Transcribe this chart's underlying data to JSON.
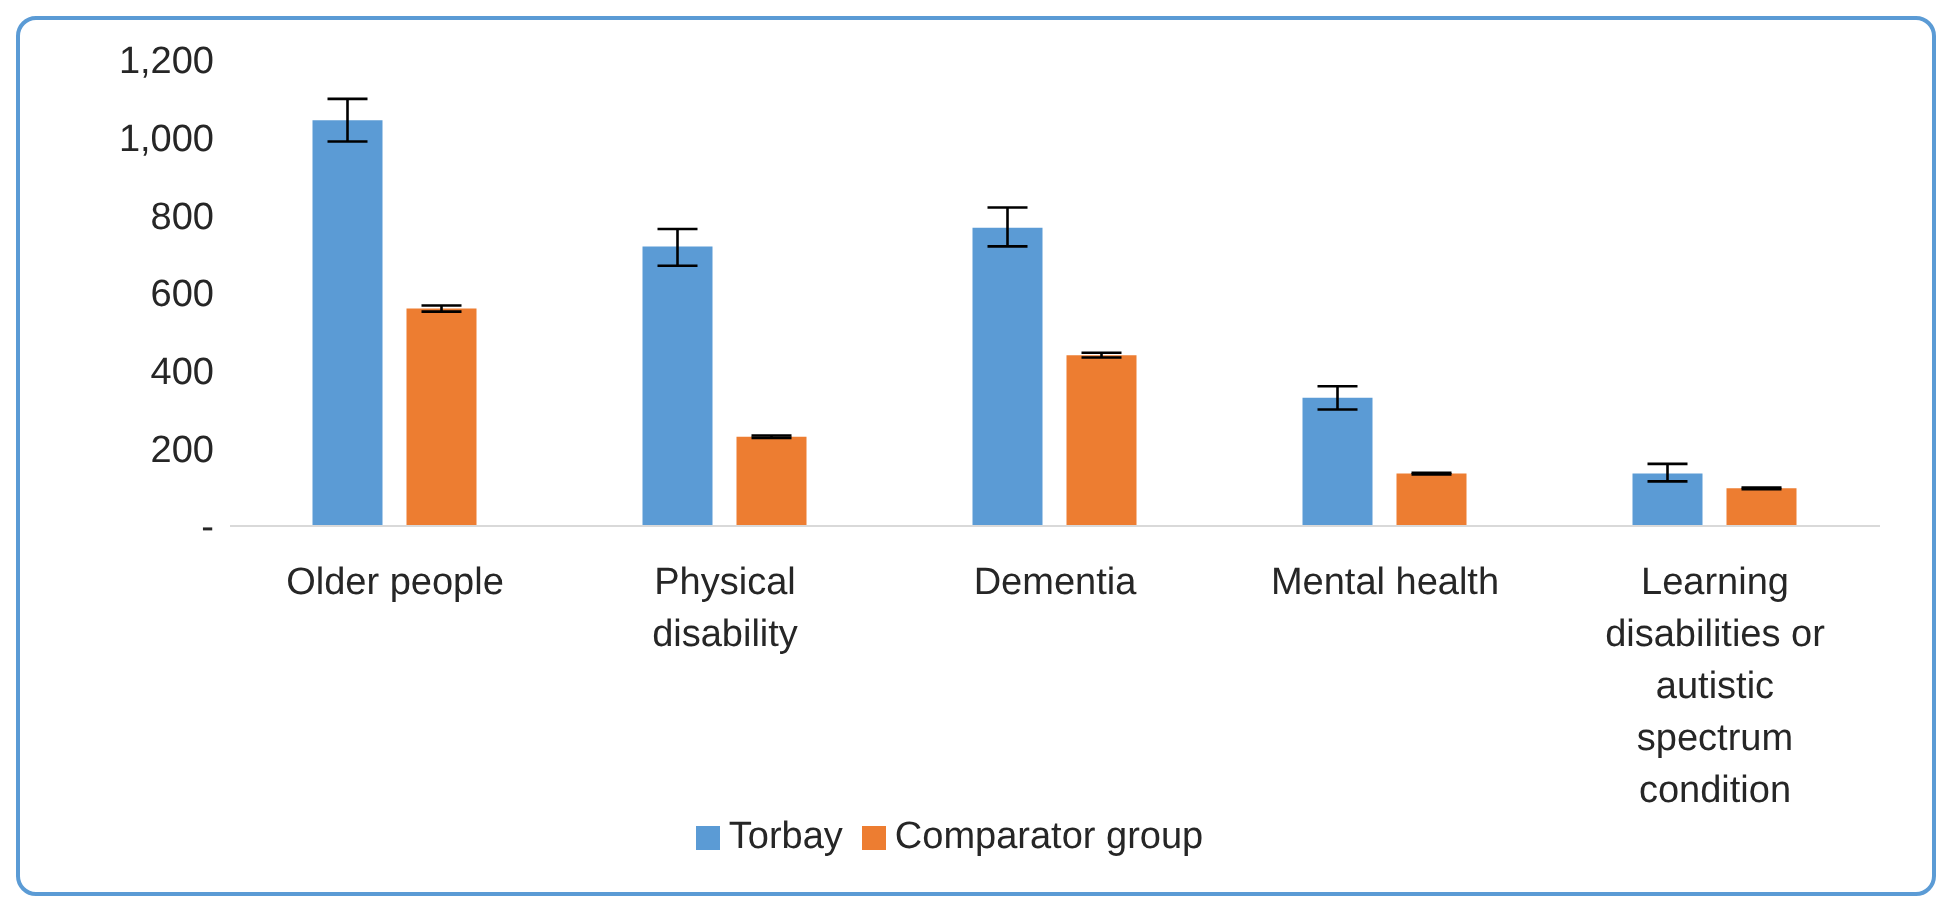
{
  "chart_data": {
    "type": "bar",
    "categories": [
      "Older people",
      "Physical disability",
      "Dementia",
      "Mental health",
      "Learning disabilities or autistic spectrum condition"
    ],
    "series": [
      {
        "name": "Torbay",
        "color": "#5b9bd5",
        "values": [
          1045,
          720,
          768,
          330,
          135
        ],
        "errors": [
          [
            990,
            1100
          ],
          [
            670,
            765
          ],
          [
            720,
            820
          ],
          [
            300,
            360
          ],
          [
            115,
            160
          ]
        ]
      },
      {
        "name": "Comparator group",
        "color": "#ed7d31",
        "values": [
          560,
          230,
          440,
          135,
          97
        ],
        "errors": [
          8,
          3,
          6,
          2,
          2
        ]
      }
    ],
    "ylim": [
      0,
      1200
    ],
    "yticks": [
      {
        "value": 0,
        "label": "-"
      },
      200,
      400,
      600,
      800,
      {
        "value": 1000,
        "label": "1,000"
      },
      {
        "value": 1200,
        "label": "1,200"
      }
    ],
    "legend": "bottom"
  }
}
